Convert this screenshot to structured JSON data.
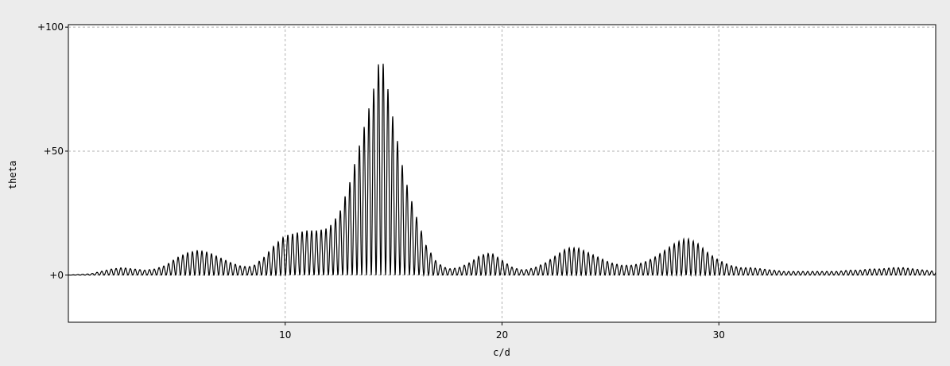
{
  "chart_data": {
    "type": "line",
    "title": "",
    "xlabel": "c/d",
    "ylabel": "theta",
    "xlim": [
      0,
      40
    ],
    "ylim": [
      -19,
      101
    ],
    "x_ticks": [
      10,
      20,
      30
    ],
    "x_tick_labels": [
      "10",
      "20",
      "30"
    ],
    "y_ticks": [
      0,
      50,
      100
    ],
    "y_tick_labels": [
      "+0",
      "+50",
      "+100"
    ],
    "grid": true,
    "grid_style": "dashed",
    "series": [
      {
        "color": "#000000",
        "x": [
          0.0,
          1.0,
          1.5,
          2.0,
          2.5,
          3.0,
          3.5,
          4.0,
          4.5,
          5.0,
          5.5,
          6.0,
          6.5,
          7.0,
          7.5,
          8.0,
          8.5,
          9.0,
          9.5,
          10.0,
          10.5,
          11.0,
          11.5,
          12.0,
          12.5,
          13.0,
          13.5,
          14.0,
          14.2,
          14.4,
          14.6,
          14.8,
          15.0,
          15.5,
          16.0,
          16.5,
          17.0,
          17.5,
          18.0,
          18.5,
          19.0,
          19.5,
          20.0,
          20.5,
          21.0,
          21.5,
          22.0,
          22.5,
          23.0,
          23.5,
          24.0,
          24.5,
          25.0,
          25.5,
          26.0,
          26.5,
          27.0,
          27.5,
          28.0,
          28.5,
          29.0,
          29.5,
          30.0,
          30.5,
          31.0,
          31.5,
          32.0,
          32.5,
          33.0,
          33.5,
          34.0,
          34.5,
          35.0,
          35.5,
          36.0,
          36.5,
          37.0,
          37.5,
          38.0,
          38.5,
          39.0,
          39.5,
          40.0
        ],
        "values": [
          0,
          0.5,
          1.5,
          2.5,
          3,
          2.5,
          2,
          2.5,
          4,
          7,
          9,
          10,
          9,
          7,
          5,
          3.5,
          3.5,
          7,
          12,
          16,
          17,
          18,
          18,
          19,
          25,
          38,
          55,
          72,
          80,
          90,
          82,
          72,
          62,
          40,
          25,
          12,
          5,
          2.5,
          3,
          5,
          8,
          9,
          6,
          3,
          2,
          3,
          5,
          8,
          11,
          11,
          9,
          7,
          5,
          4,
          4,
          5,
          7,
          10,
          13,
          15,
          13,
          9,
          6,
          4,
          3,
          3,
          2.5,
          2,
          1.5,
          1.5,
          1.5,
          1.5,
          1.5,
          1.5,
          2,
          2,
          2.5,
          2.5,
          3,
          3,
          2.5,
          2,
          1.5
        ],
        "oscillation_period": 0.22
      }
    ]
  }
}
